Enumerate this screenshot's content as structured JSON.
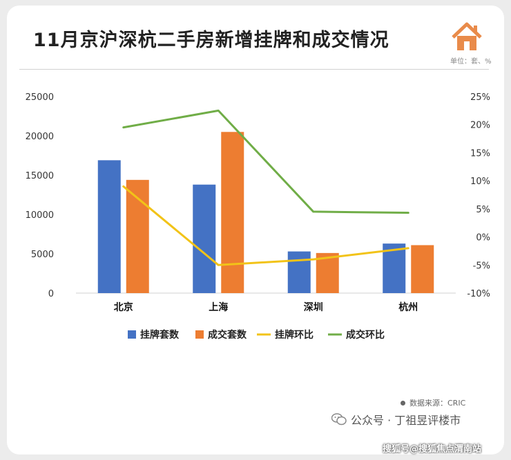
{
  "title": "11月京沪深杭二手房新增挂牌和成交情况",
  "unit": "单位：套、%",
  "source": "数据来源：CRIC",
  "wechat": "公众号 · 丁祖昱评楼市",
  "watermark": "搜狐号@搜狐焦点渭南站",
  "colors": {
    "listing_bar": "#4472c4",
    "deal_bar": "#ed7d31",
    "listing_line": "#f2c318",
    "deal_line": "#70ad47",
    "logo": "#e98b4a"
  },
  "chart_data": {
    "type": "bar",
    "categories": [
      "北京",
      "上海",
      "深圳",
      "杭州"
    ],
    "series": [
      {
        "name": "挂牌套数",
        "kind": "bar",
        "axis": "left",
        "values": [
          16900,
          13800,
          5300,
          6300
        ]
      },
      {
        "name": "成交套数",
        "kind": "bar",
        "axis": "left",
        "values": [
          14400,
          20500,
          5100,
          6100
        ]
      },
      {
        "name": "挂牌环比",
        "kind": "line",
        "axis": "right",
        "values": [
          9,
          -5,
          -4,
          -2
        ]
      },
      {
        "name": "成交环比",
        "kind": "line",
        "axis": "right",
        "values": [
          19.5,
          22.5,
          4.5,
          4.3
        ]
      }
    ],
    "y_left": {
      "min": 0,
      "max": 25000,
      "ticks": [
        "0",
        "5000",
        "10000",
        "15000",
        "20000",
        "25000"
      ]
    },
    "y_right": {
      "min": -10,
      "max": 25,
      "ticks": [
        "-10%",
        "-5%",
        "0%",
        "5%",
        "10%",
        "15%",
        "20%",
        "25%"
      ]
    },
    "legend_position": "bottom",
    "grid": false
  }
}
